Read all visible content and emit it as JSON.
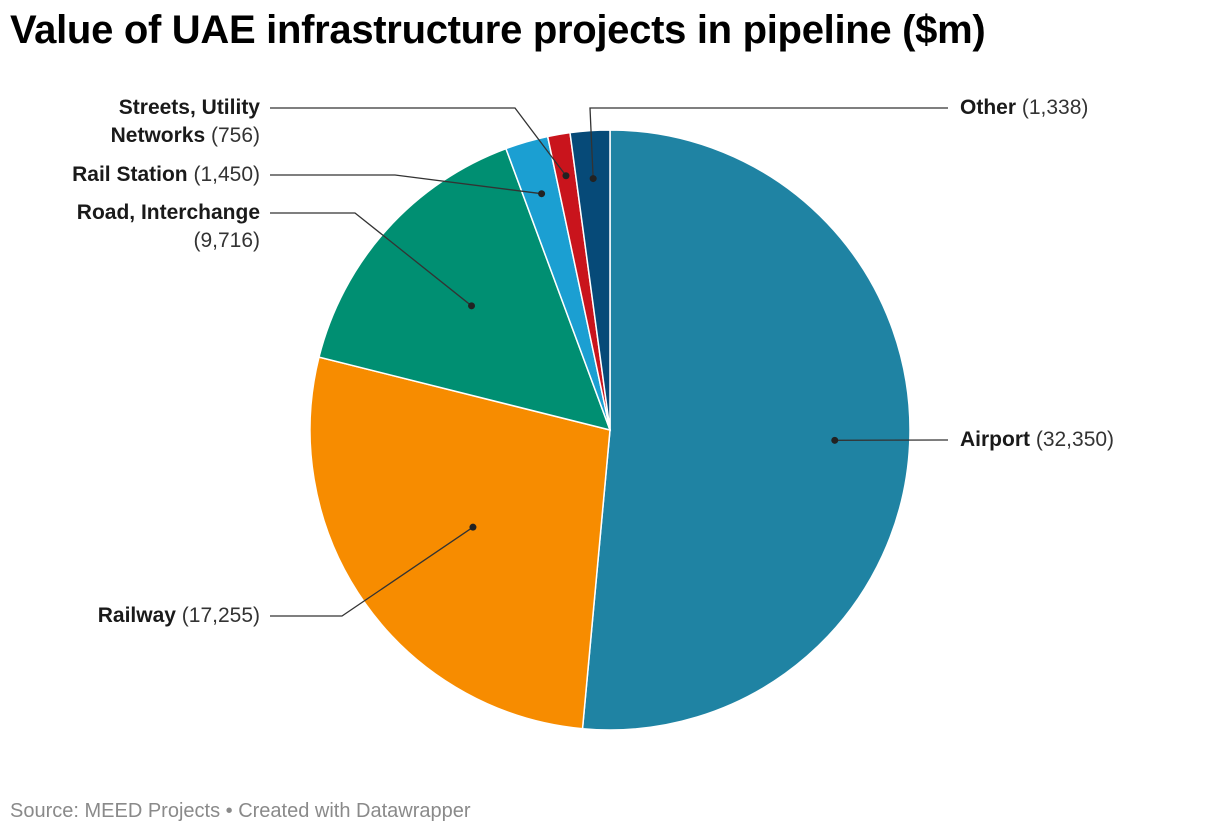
{
  "title": "Value of UAE infrastructure projects in pipeline ($m)",
  "footer": {
    "source": "Source: MEED Projects",
    "separator": " • ",
    "credit": "Created with Datawrapper"
  },
  "chart_data": {
    "type": "pie",
    "categories": [
      "Airport",
      "Railway",
      "Road, Interchange",
      "Rail Station",
      "Streets, Utility Networks",
      "Other"
    ],
    "values": [
      32350,
      17255,
      9716,
      1450,
      756,
      1338
    ],
    "value_labels": [
      "32,350",
      "17,255",
      "9,716",
      "1,450",
      "756",
      "1,338"
    ],
    "colors": [
      "#1f83a3",
      "#f78c00",
      "#008f72",
      "#1b9fd2",
      "#c9141c",
      "#064a78"
    ],
    "start": "12 o'clock",
    "direction": "clockwise"
  }
}
